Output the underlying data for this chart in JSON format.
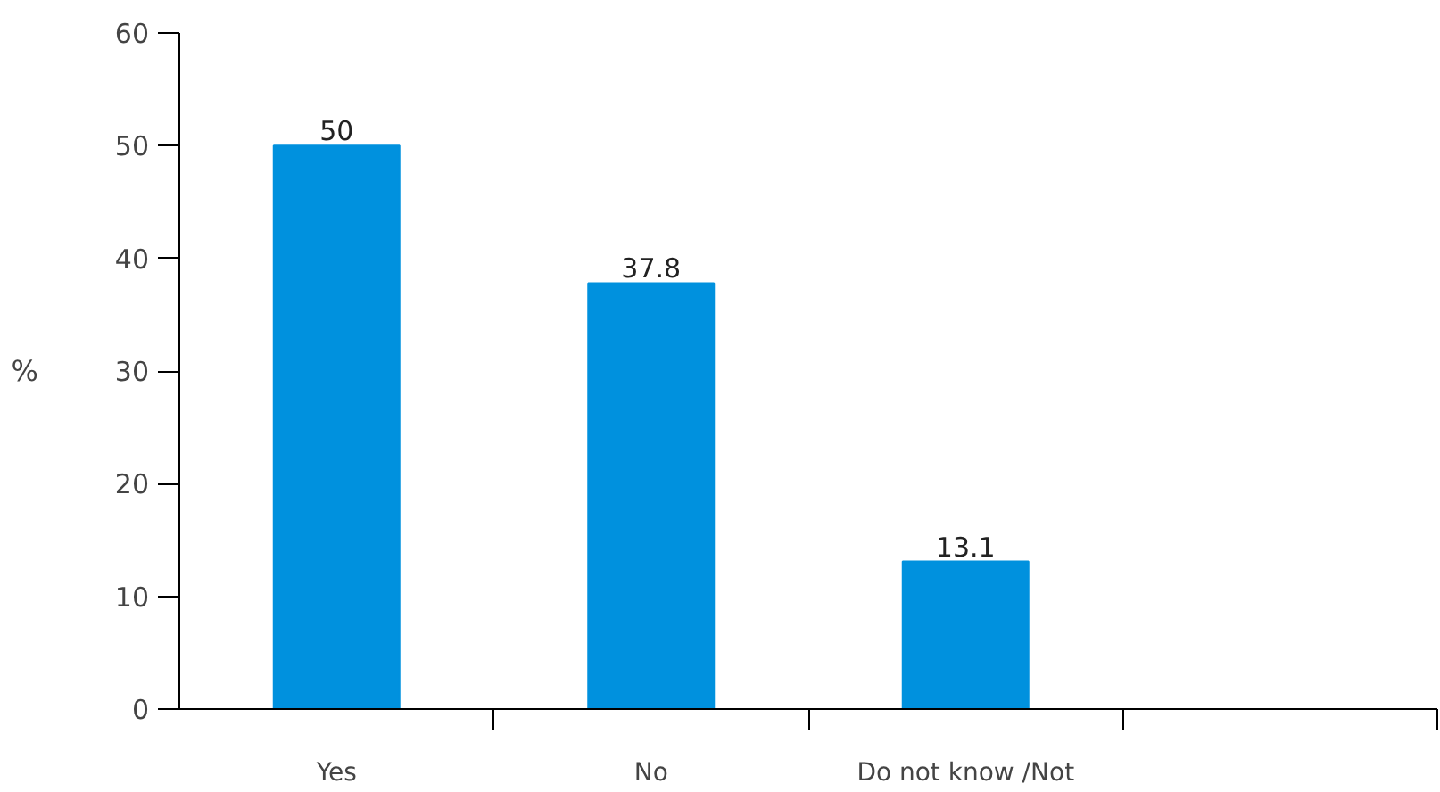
{
  "chart_data": {
    "type": "bar",
    "ylabel": "%",
    "categories": [
      "Yes",
      "No",
      "Do not know /Not",
      null
    ],
    "values": [
      50,
      37.8,
      13.1,
      null
    ],
    "color": "#0091de",
    "data_labels": true,
    "ylim": [
      0,
      60
    ],
    "yticks": [
      0,
      10,
      20,
      30,
      40,
      50,
      60
    ],
    "grid": false
  }
}
